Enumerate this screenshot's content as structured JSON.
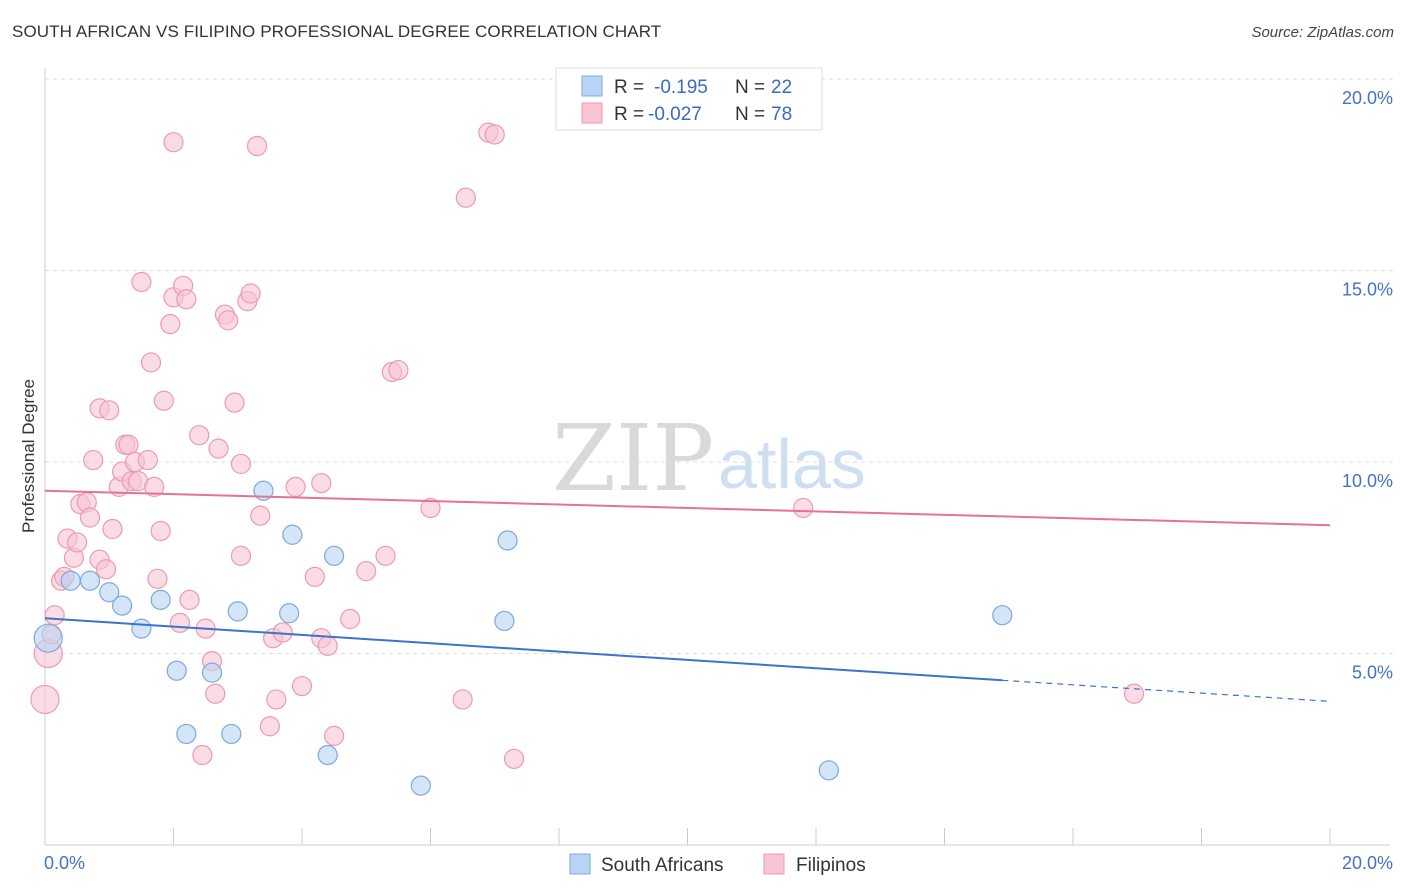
{
  "header": {
    "title": "SOUTH AFRICAN VS FILIPINO PROFESSIONAL DEGREE CORRELATION CHART",
    "source": "Source: ZipAtlas.com"
  },
  "watermark": {
    "zip": "ZIP",
    "atlas": "atlas"
  },
  "colors": {
    "blue_fill": "#b8d3f4",
    "blue_stroke": "#7fa8dd",
    "blue_line": "#3a74cc",
    "pink_fill": "#f9c4d3",
    "pink_stroke": "#ec9ab3",
    "pink_line": "#e4729a",
    "grid": "#dddddd",
    "tick_text": "#4472c4"
  },
  "legend": {
    "south_africans": {
      "r_label": "R =",
      "r_value": "-0.195",
      "n_label": "N =",
      "n_value": "22"
    },
    "filipinos": {
      "r_label": "R =",
      "r_value": "-0.027",
      "n_label": "N =",
      "n_value": "78"
    }
  },
  "chart_data": {
    "type": "scatter",
    "title": "SOUTH AFRICAN VS FILIPINO PROFESSIONAL DEGREE CORRELATION CHART",
    "xlabel": "",
    "ylabel": "Professional Degree",
    "xlim": [
      0,
      20
    ],
    "ylim": [
      0,
      20.5
    ],
    "x_tick_labels": [
      "0.0%",
      "20.0%"
    ],
    "y_tick_labels": [
      "5.0%",
      "10.0%",
      "15.0%",
      "20.0%"
    ],
    "y_ticks": [
      5,
      10,
      15,
      20
    ],
    "grid": true,
    "legend_position": "top-center",
    "series": [
      {
        "name": "South Africans",
        "color": "#b8d3f4",
        "points": [
          [
            0.05,
            5.4
          ],
          [
            0.4,
            6.9
          ],
          [
            0.7,
            6.9
          ],
          [
            1.0,
            6.6
          ],
          [
            1.2,
            6.25
          ],
          [
            1.5,
            5.65
          ],
          [
            1.8,
            6.4
          ],
          [
            2.05,
            4.55
          ],
          [
            2.2,
            2.9
          ],
          [
            2.6,
            4.5
          ],
          [
            2.9,
            2.9
          ],
          [
            3.0,
            6.1
          ],
          [
            3.4,
            9.25
          ],
          [
            3.8,
            6.05
          ],
          [
            3.85,
            8.1
          ],
          [
            4.4,
            2.35
          ],
          [
            4.5,
            7.55
          ],
          [
            5.85,
            1.55
          ],
          [
            7.2,
            7.95
          ],
          [
            7.15,
            5.85
          ],
          [
            12.2,
            1.95
          ],
          [
            14.9,
            6.0
          ]
        ],
        "trend": {
          "x": [
            0,
            14.9
          ],
          "y": [
            5.92,
            4.3
          ],
          "dashed_extension": {
            "x": [
              14.9,
              20
            ],
            "y": [
              4.3,
              3.75
            ]
          }
        }
      },
      {
        "name": "Filipinos",
        "color": "#f9c4d3",
        "points": [
          [
            0.0,
            3.8
          ],
          [
            0.05,
            5.0
          ],
          [
            0.1,
            5.5
          ],
          [
            0.15,
            6.0
          ],
          [
            0.25,
            6.9
          ],
          [
            0.3,
            7.0
          ],
          [
            0.35,
            8.0
          ],
          [
            0.45,
            7.5
          ],
          [
            0.5,
            7.9
          ],
          [
            0.55,
            8.9
          ],
          [
            0.65,
            8.95
          ],
          [
            0.7,
            8.55
          ],
          [
            0.75,
            10.05
          ],
          [
            0.85,
            7.45
          ],
          [
            0.85,
            11.4
          ],
          [
            0.95,
            7.2
          ],
          [
            1.0,
            11.35
          ],
          [
            1.05,
            8.25
          ],
          [
            1.15,
            9.35
          ],
          [
            1.2,
            9.75
          ],
          [
            1.25,
            10.45
          ],
          [
            1.3,
            10.45
          ],
          [
            1.35,
            9.5
          ],
          [
            1.4,
            10.0
          ],
          [
            1.45,
            9.5
          ],
          [
            1.5,
            14.7
          ],
          [
            1.6,
            10.05
          ],
          [
            1.65,
            12.6
          ],
          [
            1.7,
            9.35
          ],
          [
            1.75,
            6.95
          ],
          [
            1.8,
            8.2
          ],
          [
            1.85,
            11.6
          ],
          [
            1.95,
            13.6
          ],
          [
            2.0,
            14.3
          ],
          [
            2.0,
            18.35
          ],
          [
            2.1,
            5.8
          ],
          [
            2.15,
            14.6
          ],
          [
            2.2,
            14.25
          ],
          [
            2.25,
            6.4
          ],
          [
            2.4,
            10.7
          ],
          [
            2.45,
            2.35
          ],
          [
            2.5,
            5.65
          ],
          [
            2.6,
            4.8
          ],
          [
            2.65,
            3.95
          ],
          [
            2.7,
            10.35
          ],
          [
            2.8,
            13.85
          ],
          [
            2.85,
            13.7
          ],
          [
            2.95,
            11.55
          ],
          [
            3.05,
            7.55
          ],
          [
            3.05,
            9.95
          ],
          [
            3.15,
            14.2
          ],
          [
            3.2,
            14.4
          ],
          [
            3.3,
            18.25
          ],
          [
            3.35,
            8.6
          ],
          [
            3.5,
            3.1
          ],
          [
            3.55,
            5.4
          ],
          [
            3.6,
            3.8
          ],
          [
            3.7,
            5.55
          ],
          [
            3.9,
            9.35
          ],
          [
            4.0,
            4.15
          ],
          [
            4.2,
            7.0
          ],
          [
            4.3,
            9.45
          ],
          [
            4.3,
            5.4
          ],
          [
            4.4,
            5.2
          ],
          [
            4.5,
            2.85
          ],
          [
            4.75,
            5.9
          ],
          [
            5.0,
            7.15
          ],
          [
            5.3,
            7.55
          ],
          [
            5.4,
            12.35
          ],
          [
            5.5,
            12.4
          ],
          [
            6.0,
            8.8
          ],
          [
            6.5,
            3.8
          ],
          [
            6.55,
            16.9
          ],
          [
            6.9,
            18.6
          ],
          [
            7.0,
            18.55
          ],
          [
            7.3,
            2.25
          ],
          [
            11.8,
            8.8
          ],
          [
            16.95,
            3.95
          ]
        ],
        "trend": {
          "x": [
            0,
            20
          ],
          "y": [
            9.25,
            8.35
          ]
        }
      }
    ]
  },
  "bottom_legend": {
    "south_africans": "South Africans",
    "filipinos": "Filipinos"
  }
}
